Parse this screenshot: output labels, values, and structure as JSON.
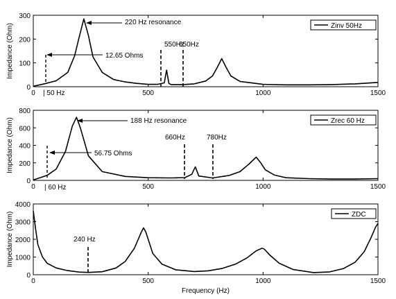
{
  "chart_data": [
    {
      "type": "line",
      "xlim": [
        0,
        1500
      ],
      "ylim": [
        0,
        300
      ],
      "xticks": [
        "0",
        "500",
        "1000",
        "1500"
      ],
      "yticks": [
        "0",
        "100",
        "200",
        "300"
      ],
      "ylabel": "Impedance (Ohm)",
      "xlabel": "",
      "legend": "top-right",
      "series": [
        {
          "name": "Zinv 50Hz",
          "x": [
            0,
            50,
            100,
            150,
            180,
            200,
            220,
            240,
            260,
            300,
            350,
            400,
            450,
            500,
            540,
            570,
            580,
            590,
            600,
            650,
            700,
            750,
            780,
            800,
            820,
            840,
            860,
            900,
            1000,
            1100,
            1200,
            1300,
            1400,
            1500
          ],
          "y": [
            2,
            12.65,
            25,
            60,
            130,
            210,
            285,
            215,
            125,
            60,
            30,
            20,
            14,
            10,
            10,
            16,
            70,
            14,
            9,
            9,
            12,
            24,
            45,
            80,
            118,
            80,
            45,
            22,
            10,
            8,
            8,
            9,
            12,
            18
          ]
        }
      ],
      "annotations": [
        {
          "text": "220 Hz resonance",
          "x": 220,
          "y": 285
        },
        {
          "text": "12.65 Ohms",
          "x": 50,
          "y": 140
        },
        {
          "text": "550Hz",
          "x": 550,
          "y": 170
        },
        {
          "text": "650Hz",
          "x": 650,
          "y": 170
        },
        {
          "text": "| 50 Hz",
          "x": 50,
          "y": 0
        }
      ]
    },
    {
      "type": "line",
      "xlim": [
        0,
        1500
      ],
      "ylim": [
        0,
        800
      ],
      "xticks": [
        "0",
        "500",
        "1000",
        "1500"
      ],
      "yticks": [
        "0",
        "200",
        "400",
        "600",
        "800"
      ],
      "ylabel": "Impedance (Ohm)",
      "xlabel": "",
      "legend": "top-right",
      "series": [
        {
          "name": "Zrec 60 Hz",
          "x": [
            0,
            60,
            100,
            140,
            170,
            188,
            205,
            240,
            300,
            400,
            500,
            600,
            660,
            690,
            705,
            720,
            780,
            850,
            900,
            940,
            970,
            990,
            1010,
            1050,
            1100,
            1200,
            1300,
            1400,
            1500
          ],
          "y": [
            5,
            56.75,
            130,
            330,
            620,
            720,
            600,
            280,
            100,
            45,
            30,
            28,
            32,
            70,
            155,
            50,
            28,
            55,
            100,
            190,
            265,
            200,
            120,
            60,
            30,
            20,
            15,
            15,
            20
          ]
        }
      ],
      "annotations": [
        {
          "text": "188 Hz resonance",
          "x": 188,
          "y": 720
        },
        {
          "text": "56.75 Ohms",
          "x": 60,
          "y": 330
        },
        {
          "text": "660Hz",
          "x": 660,
          "y": 500
        },
        {
          "text": "780Hz",
          "x": 780,
          "y": 500
        },
        {
          "text": "| 60 Hz",
          "x": 60,
          "y": 0
        }
      ]
    },
    {
      "type": "line",
      "xlim": [
        0,
        1500
      ],
      "ylim": [
        0,
        4000
      ],
      "xticks": [
        "0",
        "500",
        "1000",
        "1500"
      ],
      "yticks": [
        "0",
        "1000",
        "2000",
        "3000",
        "4000"
      ],
      "ylabel": "Impedance (Ohm)",
      "xlabel": "Frequency (Hz)",
      "legend": "top-right",
      "series": [
        {
          "name": "ZDC",
          "x": [
            0,
            10,
            20,
            40,
            60,
            100,
            150,
            200,
            240,
            300,
            360,
            400,
            440,
            470,
            480,
            490,
            520,
            560,
            620,
            700,
            760,
            820,
            880,
            930,
            970,
            995,
            1005,
            1030,
            1070,
            1130,
            1220,
            1290,
            1350,
            1400,
            1440,
            1470,
            1490,
            1500
          ],
          "y": [
            3600,
            2600,
            1700,
            1000,
            650,
            380,
            230,
            150,
            130,
            170,
            380,
            750,
            1500,
            2400,
            2650,
            2400,
            1200,
            600,
            280,
            180,
            220,
            350,
            600,
            950,
            1350,
            1500,
            1450,
            1100,
            650,
            300,
            120,
            160,
            350,
            700,
            1300,
            2100,
            2700,
            2900
          ]
        }
      ],
      "annotations": [
        {
          "text": "240 Hz",
          "x": 240,
          "y": 1500
        }
      ]
    }
  ]
}
